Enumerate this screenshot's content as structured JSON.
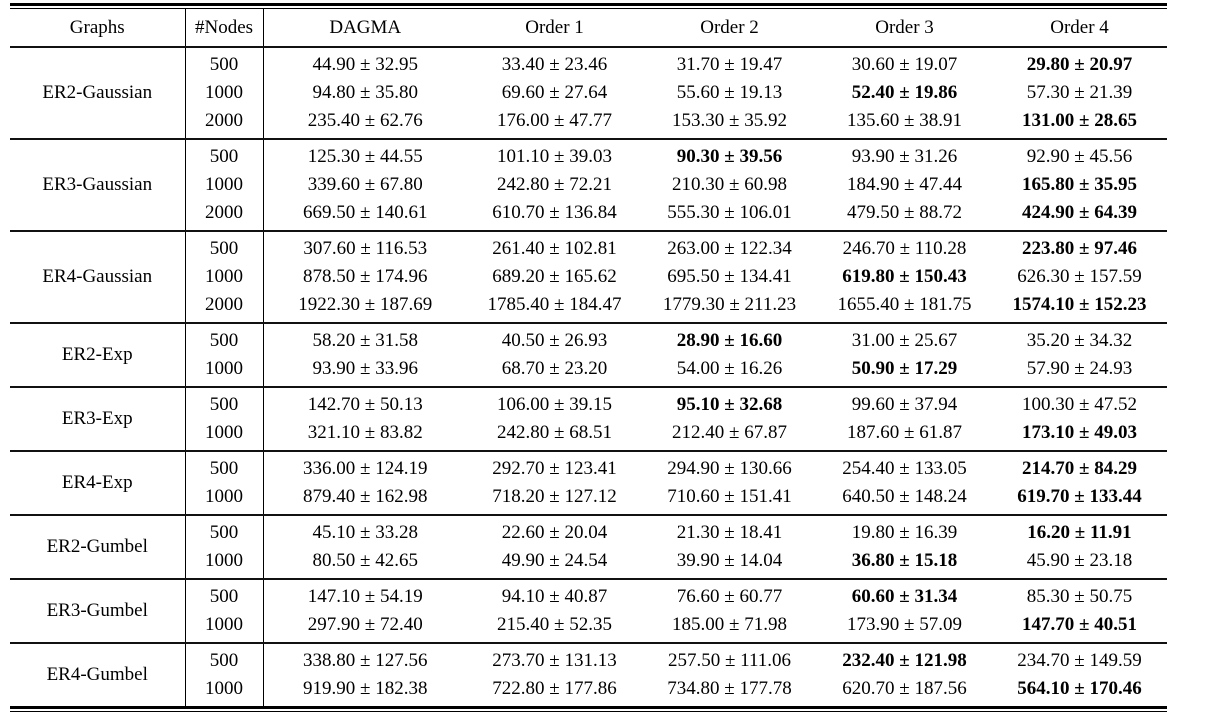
{
  "styles": {
    "background": "#ffffff",
    "text_color": "#000000",
    "rule_color": "#000000"
  },
  "table": {
    "headers": [
      "Graphs",
      "#Nodes",
      "DAGMA",
      "Order 1",
      "Order 2",
      "Order 3",
      "Order 4"
    ],
    "groups": [
      {
        "graph": "ER2-Gaussian",
        "rows": [
          {
            "nodes": "500",
            "values": [
              "44.90 ± 32.95",
              "33.40 ± 23.46",
              "31.70 ± 19.47",
              "30.60 ± 19.07",
              "29.80 ± 20.97"
            ],
            "bold_index": 4
          },
          {
            "nodes": "1000",
            "values": [
              "94.80 ± 35.80",
              "69.60 ± 27.64",
              "55.60 ± 19.13",
              "52.40 ± 19.86",
              "57.30 ± 21.39"
            ],
            "bold_index": 3
          },
          {
            "nodes": "2000",
            "values": [
              "235.40 ± 62.76",
              "176.00 ± 47.77",
              "153.30 ± 35.92",
              "135.60 ± 38.91",
              "131.00 ± 28.65"
            ],
            "bold_index": 4
          }
        ]
      },
      {
        "graph": "ER3-Gaussian",
        "rows": [
          {
            "nodes": "500",
            "values": [
              "125.30 ± 44.55",
              "101.10 ± 39.03",
              "90.30 ± 39.56",
              "93.90 ± 31.26",
              "92.90 ± 45.56"
            ],
            "bold_index": 2
          },
          {
            "nodes": "1000",
            "values": [
              "339.60 ± 67.80",
              "242.80 ± 72.21",
              "210.30 ± 60.98",
              "184.90 ± 47.44",
              "165.80 ± 35.95"
            ],
            "bold_index": 4
          },
          {
            "nodes": "2000",
            "values": [
              "669.50 ± 140.61",
              "610.70 ± 136.84",
              "555.30 ± 106.01",
              "479.50 ± 88.72",
              "424.90 ± 64.39"
            ],
            "bold_index": 4
          }
        ]
      },
      {
        "graph": "ER4-Gaussian",
        "rows": [
          {
            "nodes": "500",
            "values": [
              "307.60 ± 116.53",
              "261.40 ± 102.81",
              "263.00 ± 122.34",
              "246.70 ± 110.28",
              "223.80 ± 97.46"
            ],
            "bold_index": 4
          },
          {
            "nodes": "1000",
            "values": [
              "878.50 ± 174.96",
              "689.20 ± 165.62",
              "695.50 ± 134.41",
              "619.80 ± 150.43",
              "626.30 ± 157.59"
            ],
            "bold_index": 3
          },
          {
            "nodes": "2000",
            "values": [
              "1922.30 ± 187.69",
              "1785.40 ± 184.47",
              "1779.30 ± 211.23",
              "1655.40 ± 181.75",
              "1574.10 ± 152.23"
            ],
            "bold_index": 4
          }
        ]
      },
      {
        "graph": "ER2-Exp",
        "rows": [
          {
            "nodes": "500",
            "values": [
              "58.20 ± 31.58",
              "40.50 ± 26.93",
              "28.90 ± 16.60",
              "31.00 ± 25.67",
              "35.20 ± 34.32"
            ],
            "bold_index": 2
          },
          {
            "nodes": "1000",
            "values": [
              "93.90 ± 33.96",
              "68.70 ± 23.20",
              "54.00 ± 16.26",
              "50.90 ± 17.29",
              "57.90 ± 24.93"
            ],
            "bold_index": 3
          }
        ]
      },
      {
        "graph": "ER3-Exp",
        "rows": [
          {
            "nodes": "500",
            "values": [
              "142.70 ± 50.13",
              "106.00 ± 39.15",
              "95.10 ± 32.68",
              "99.60 ± 37.94",
              "100.30 ± 47.52"
            ],
            "bold_index": 2
          },
          {
            "nodes": "1000",
            "values": [
              "321.10 ± 83.82",
              "242.80 ± 68.51",
              "212.40 ± 67.87",
              "187.60 ± 61.87",
              "173.10 ± 49.03"
            ],
            "bold_index": 4
          }
        ]
      },
      {
        "graph": "ER4-Exp",
        "rows": [
          {
            "nodes": "500",
            "values": [
              "336.00 ± 124.19",
              "292.70 ± 123.41",
              "294.90 ± 130.66",
              "254.40 ± 133.05",
              "214.70 ± 84.29"
            ],
            "bold_index": 4
          },
          {
            "nodes": "1000",
            "values": [
              "879.40 ± 162.98",
              "718.20 ± 127.12",
              "710.60 ± 151.41",
              "640.50 ± 148.24",
              "619.70 ± 133.44"
            ],
            "bold_index": 4
          }
        ]
      },
      {
        "graph": "ER2-Gumbel",
        "rows": [
          {
            "nodes": "500",
            "values": [
              "45.10 ± 33.28",
              "22.60 ± 20.04",
              "21.30 ± 18.41",
              "19.80 ± 16.39",
              "16.20 ± 11.91"
            ],
            "bold_index": 4
          },
          {
            "nodes": "1000",
            "values": [
              "80.50 ± 42.65",
              "49.90 ± 24.54",
              "39.90 ± 14.04",
              "36.80 ± 15.18",
              "45.90 ± 23.18"
            ],
            "bold_index": 3
          }
        ]
      },
      {
        "graph": "ER3-Gumbel",
        "rows": [
          {
            "nodes": "500",
            "values": [
              "147.10 ± 54.19",
              "94.10 ± 40.87",
              "76.60 ± 60.77",
              "60.60 ± 31.34",
              "85.30 ± 50.75"
            ],
            "bold_index": 3
          },
          {
            "nodes": "1000",
            "values": [
              "297.90 ± 72.40",
              "215.40 ± 52.35",
              "185.00 ± 71.98",
              "173.90 ± 57.09",
              "147.70 ± 40.51"
            ],
            "bold_index": 4
          }
        ]
      },
      {
        "graph": "ER4-Gumbel",
        "rows": [
          {
            "nodes": "500",
            "values": [
              "338.80 ± 127.56",
              "273.70 ± 131.13",
              "257.50 ± 111.06",
              "232.40 ± 121.98",
              "234.70 ± 149.59"
            ],
            "bold_index": 3
          },
          {
            "nodes": "1000",
            "values": [
              "919.90 ± 182.38",
              "722.80 ± 177.86",
              "734.80 ± 177.78",
              "620.70 ± 187.56",
              "564.10 ± 170.46"
            ],
            "bold_index": 4
          }
        ]
      }
    ]
  }
}
